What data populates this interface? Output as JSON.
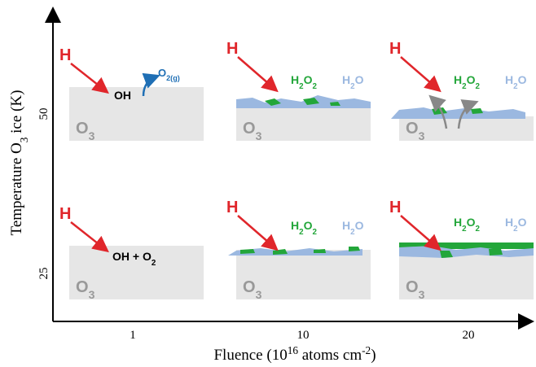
{
  "axes": {
    "y_label": [
      {
        "text": "Temperature O"
      },
      {
        "sub": "3"
      },
      {
        "text": " ice (K)"
      }
    ],
    "x_label": [
      {
        "text": "Fluence (10"
      },
      {
        "sup": "16"
      },
      {
        "text": " atoms cm"
      },
      {
        "sup": "-2"
      },
      {
        "text": ")"
      }
    ],
    "x_ticks": [
      "1",
      "10",
      "20"
    ],
    "y_ticks": [
      "50",
      "25"
    ]
  },
  "panels": [
    {
      "incoming": "H",
      "products": [
        [
          {
            "text": "OH"
          }
        ],
        [
          {
            "text": "O"
          },
          {
            "sub": "2(g)"
          }
        ]
      ],
      "substrate": [
        {
          "text": "O"
        },
        {
          "sub": "3"
        }
      ]
    },
    {
      "incoming": "H",
      "products": [
        [
          {
            "text": "H"
          },
          {
            "sub": "2"
          },
          {
            "text": "O"
          },
          {
            "sub": "2"
          }
        ],
        [
          {
            "text": "H"
          },
          {
            "sub": "2"
          },
          {
            "text": "O"
          }
        ]
      ],
      "substrate": [
        {
          "text": "O"
        },
        {
          "sub": "3"
        }
      ]
    },
    {
      "incoming": "H",
      "products": [
        [
          {
            "text": "H"
          },
          {
            "sub": "2"
          },
          {
            "text": "O"
          },
          {
            "sub": "2"
          }
        ],
        [
          {
            "text": "H"
          },
          {
            "sub": "2"
          },
          {
            "text": "O"
          }
        ]
      ],
      "substrate": [
        {
          "text": "O"
        },
        {
          "sub": "3"
        }
      ]
    },
    {
      "incoming": "H",
      "products": [
        [
          {
            "text": "OH + O"
          },
          {
            "sub": "2"
          }
        ]
      ],
      "substrate": [
        {
          "text": "O"
        },
        {
          "sub": "3"
        }
      ]
    },
    {
      "incoming": "H",
      "products": [
        [
          {
            "text": "H"
          },
          {
            "sub": "2"
          },
          {
            "text": "O"
          },
          {
            "sub": "2"
          }
        ],
        [
          {
            "text": "H"
          },
          {
            "sub": "2"
          },
          {
            "text": "O"
          }
        ]
      ],
      "substrate": [
        {
          "text": "O"
        },
        {
          "sub": "3"
        }
      ]
    },
    {
      "incoming": "H",
      "products": [
        [
          {
            "text": "H"
          },
          {
            "sub": "2"
          },
          {
            "text": "O"
          },
          {
            "sub": "2"
          }
        ],
        [
          {
            "text": "H"
          },
          {
            "sub": "2"
          },
          {
            "text": "O"
          }
        ]
      ],
      "substrate": [
        {
          "text": "O"
        },
        {
          "sub": "3"
        }
      ]
    }
  ]
}
